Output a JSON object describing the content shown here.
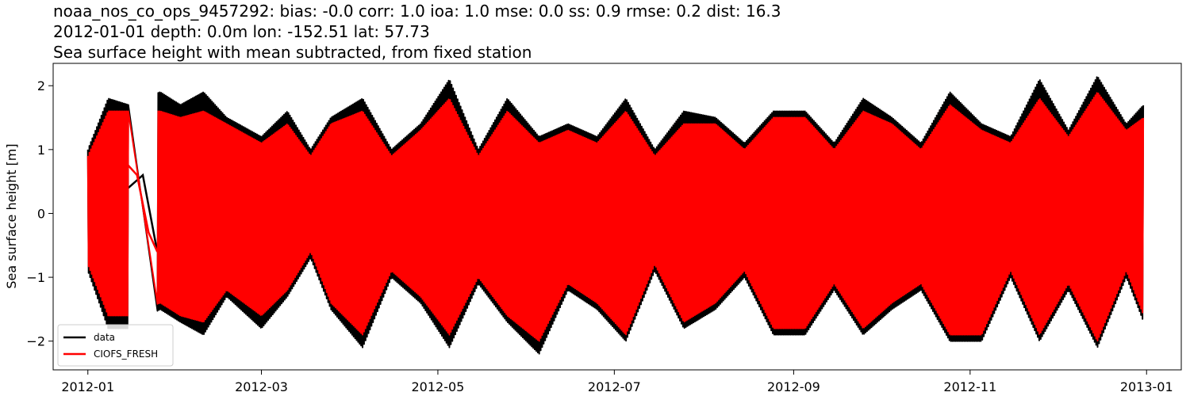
{
  "titles": {
    "line1": "noaa_nos_co_ops_9457292: bias: -0.0  corr: 1.0  ioa: 1.0  mse: 0.0  ss: 0.9  rmse: 0.2  dist: 16.3",
    "line2": "2012-01-01 depth: 0.0m lon: -152.51 lat: 57.73",
    "line3": "Sea surface height with mean subtracted, from fixed station"
  },
  "chart_data": {
    "type": "line",
    "xlabel": "",
    "ylabel": "Sea surface height [m]",
    "xlim": [
      "2011-12-20",
      "2013-01-13"
    ],
    "ylim": [
      -2.45,
      2.35
    ],
    "x_ticks": [
      "2012-01",
      "2012-03",
      "2012-05",
      "2012-07",
      "2012-09",
      "2012-11",
      "2013-01"
    ],
    "y_ticks": [
      2,
      1,
      0,
      -1,
      -2
    ],
    "legend": {
      "position": "lower-left"
    },
    "series": [
      {
        "name": "data",
        "color": "#000000",
        "envelope": {
          "x": [
            "2012-01-01",
            "2012-01-08",
            "2012-01-15",
            "2012-01-26",
            "2012-02-02",
            "2012-02-10",
            "2012-02-18",
            "2012-03-01",
            "2012-03-10",
            "2012-03-18",
            "2012-03-25",
            "2012-04-05",
            "2012-04-15",
            "2012-04-25",
            "2012-05-05",
            "2012-05-15",
            "2012-05-25",
            "2012-06-05",
            "2012-06-15",
            "2012-06-25",
            "2012-07-05",
            "2012-07-15",
            "2012-07-25",
            "2012-08-05",
            "2012-08-15",
            "2012-08-25",
            "2012-09-05",
            "2012-09-15",
            "2012-09-25",
            "2012-10-05",
            "2012-10-15",
            "2012-10-25",
            "2012-11-05",
            "2012-11-15",
            "2012-11-25",
            "2012-12-05",
            "2012-12-15",
            "2012-12-25",
            "2012-12-31"
          ],
          "high": [
            1.0,
            1.8,
            1.7,
            1.9,
            1.7,
            1.9,
            1.5,
            1.2,
            1.6,
            1.0,
            1.5,
            1.8,
            1.0,
            1.4,
            2.1,
            1.0,
            1.8,
            1.2,
            1.4,
            1.2,
            1.8,
            1.0,
            1.6,
            1.5,
            1.1,
            1.6,
            1.6,
            1.1,
            1.8,
            1.5,
            1.1,
            1.9,
            1.4,
            1.2,
            2.1,
            1.3,
            2.15,
            1.4,
            1.7
          ],
          "low": [
            -0.9,
            -1.8,
            -1.8,
            -1.5,
            -1.7,
            -1.9,
            -1.3,
            -1.8,
            -1.3,
            -0.7,
            -1.5,
            -2.1,
            -1.0,
            -1.4,
            -2.1,
            -1.1,
            -1.7,
            -2.2,
            -1.2,
            -1.5,
            -2.0,
            -0.9,
            -1.8,
            -1.5,
            -1.0,
            -1.9,
            -1.9,
            -1.2,
            -1.9,
            -1.5,
            -1.2,
            -2.0,
            -2.0,
            -1.0,
            -2.0,
            -1.2,
            -2.1,
            -1.0,
            -1.7
          ]
        },
        "gap": {
          "x": [
            "2012-01-15",
            "2012-01-20",
            "2012-01-25"
          ],
          "y": [
            0.4,
            0.6,
            -0.6
          ]
        }
      },
      {
        "name": "CIOFS_FRESH",
        "color": "#ff0000",
        "envelope": {
          "x": [
            "2012-01-01",
            "2012-01-08",
            "2012-01-15",
            "2012-01-26",
            "2012-02-02",
            "2012-02-10",
            "2012-02-18",
            "2012-03-01",
            "2012-03-10",
            "2012-03-18",
            "2012-03-25",
            "2012-04-05",
            "2012-04-15",
            "2012-04-25",
            "2012-05-05",
            "2012-05-15",
            "2012-05-25",
            "2012-06-05",
            "2012-06-15",
            "2012-06-25",
            "2012-07-05",
            "2012-07-15",
            "2012-07-25",
            "2012-08-05",
            "2012-08-15",
            "2012-08-25",
            "2012-09-05",
            "2012-09-15",
            "2012-09-25",
            "2012-10-05",
            "2012-10-15",
            "2012-10-25",
            "2012-11-05",
            "2012-11-15",
            "2012-11-25",
            "2012-12-05",
            "2012-12-15",
            "2012-12-25",
            "2012-12-31"
          ],
          "high": [
            0.9,
            1.6,
            1.6,
            1.6,
            1.5,
            1.6,
            1.4,
            1.1,
            1.4,
            0.9,
            1.4,
            1.6,
            0.9,
            1.3,
            1.8,
            0.9,
            1.6,
            1.1,
            1.3,
            1.1,
            1.6,
            0.9,
            1.4,
            1.4,
            1.0,
            1.5,
            1.5,
            1.0,
            1.6,
            1.4,
            1.0,
            1.7,
            1.3,
            1.1,
            1.8,
            1.2,
            1.9,
            1.3,
            1.5
          ],
          "low": [
            -0.8,
            -1.6,
            -1.6,
            -1.4,
            -1.6,
            -1.7,
            -1.2,
            -1.6,
            -1.2,
            -0.6,
            -1.4,
            -1.9,
            -0.9,
            -1.3,
            -1.9,
            -1.0,
            -1.6,
            -2.0,
            -1.1,
            -1.4,
            -1.9,
            -0.8,
            -1.7,
            -1.4,
            -0.9,
            -1.8,
            -1.8,
            -1.1,
            -1.8,
            -1.4,
            -1.1,
            -1.9,
            -1.9,
            -0.9,
            -1.9,
            -1.1,
            -2.0,
            -0.9,
            -1.6
          ]
        },
        "gap": {
          "x": [
            "2012-01-15",
            "2012-01-18",
            "2012-01-22",
            "2012-01-25"
          ],
          "y": [
            0.75,
            0.6,
            -0.3,
            -0.6
          ]
        }
      }
    ]
  }
}
